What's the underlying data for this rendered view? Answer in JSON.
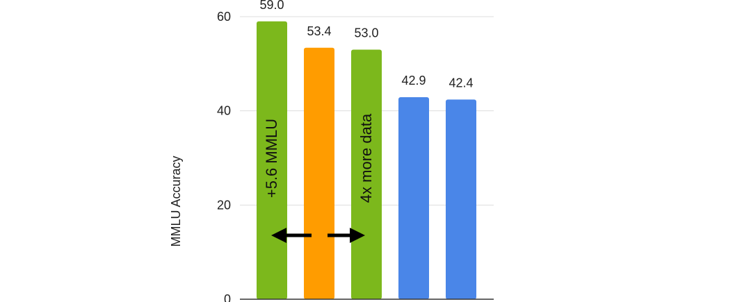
{
  "chart_data": {
    "type": "bar",
    "categories": [
      "",
      "",
      "",
      "",
      ""
    ],
    "values": [
      59.0,
      53.4,
      53.0,
      42.9,
      42.4
    ],
    "data_labels": [
      "59.0",
      "53.4",
      "53.0",
      "42.9",
      "42.4"
    ],
    "bar_colors": [
      "#7cb81c",
      "#ff9c00",
      "#7cb81c",
      "#4a86e8",
      "#4a86e8"
    ],
    "title": "",
    "xlabel": "",
    "ylabel": "MMLU Accuracy",
    "ylim": [
      0,
      60
    ],
    "yticks": [
      0,
      20,
      40,
      60
    ],
    "grid": true,
    "annotations": {
      "left_bar_text": "+5.6 MMLU",
      "right_bar_text": "4x more data",
      "arrows": [
        "left-arrow",
        "right-arrow"
      ]
    }
  },
  "colors": {
    "grid": "#dddddd",
    "axis": "#333333",
    "text": "#222222"
  }
}
